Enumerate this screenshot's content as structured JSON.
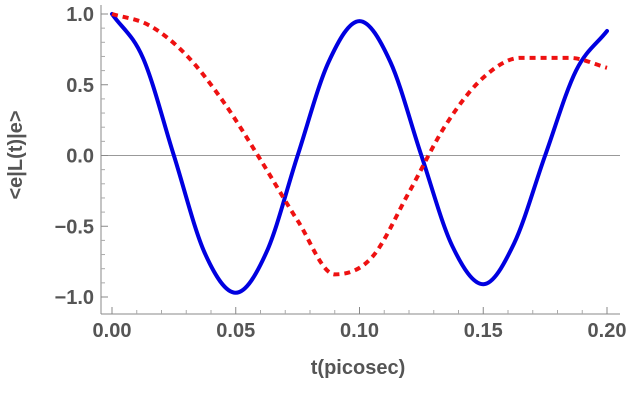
{
  "chart_data": {
    "type": "line",
    "title": "",
    "xlabel": "t(picosec)",
    "ylabel": "<e|L(t)|e>",
    "xlim": [
      0.0,
      0.2
    ],
    "ylim": [
      -1.0,
      1.0
    ],
    "x_ticks": [
      0.0,
      0.05,
      0.1,
      0.15,
      0.2
    ],
    "x_tick_labels": [
      "0.00",
      "0.05",
      "0.10",
      "0.15",
      "0.20"
    ],
    "y_ticks": [
      1.0,
      0.5,
      0.0,
      -0.5,
      -1.0
    ],
    "y_tick_labels": [
      "1.0",
      "0.5",
      "0.0",
      "−0.5",
      "−1.0"
    ],
    "grid": false,
    "zero_line": true,
    "series": [
      {
        "color": "#0000e0",
        "style": "solid",
        "x": [
          0.0,
          0.0125,
          0.025,
          0.0375,
          0.05,
          0.0625,
          0.075,
          0.0875,
          0.1,
          0.1125,
          0.125,
          0.1375,
          0.15,
          0.1625,
          0.175,
          0.1875,
          0.2
        ],
        "y": [
          1.0,
          0.69,
          0.0,
          -0.69,
          -0.97,
          -0.68,
          0.0,
          0.66,
          0.95,
          0.66,
          0.0,
          -0.64,
          -0.91,
          -0.62,
          0.0,
          0.6,
          0.88
        ]
      },
      {
        "color": "#ee1111",
        "style": "dashed",
        "x": [
          0.0,
          0.015,
          0.03,
          0.045,
          0.06,
          0.075,
          0.09,
          0.105,
          0.12,
          0.135,
          0.15,
          0.165,
          0.185,
          0.2
        ],
        "y": [
          1.0,
          0.92,
          0.71,
          0.38,
          -0.03,
          -0.46,
          -0.84,
          -0.72,
          -0.26,
          0.22,
          0.55,
          0.69,
          0.69,
          0.62
        ]
      }
    ]
  }
}
